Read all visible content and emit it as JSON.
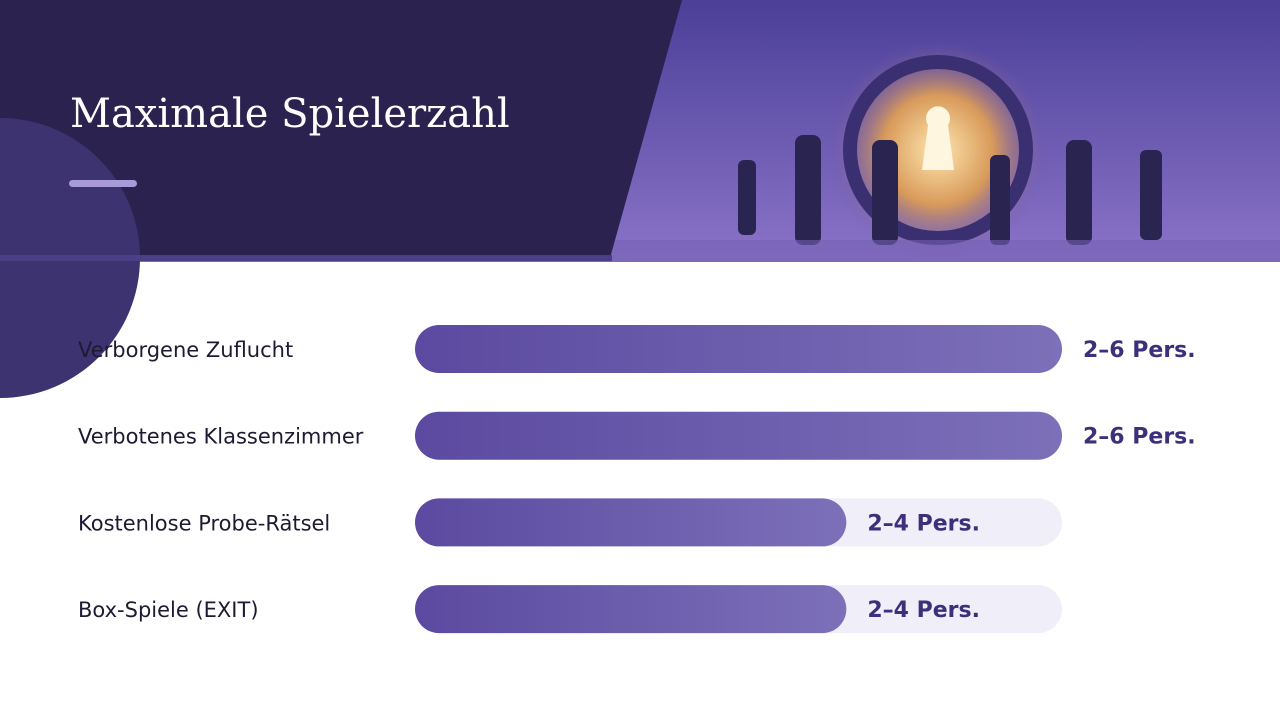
{
  "chart_data": {
    "type": "bar",
    "orientation": "horizontal",
    "title": "Maximale Spielerzahl",
    "categories": [
      "Verborgene Zuflucht",
      "Verbotenes Klassenzimmer",
      "Kostenlose Probe-Rätsel",
      "Box-Spiele (EXIT)"
    ],
    "values": [
      6,
      6,
      4,
      4
    ],
    "value_labels": [
      "2–6 Pers.",
      "2–6 Pers.",
      "2–4 Pers.",
      "2–4 Pers."
    ],
    "color": "#5b4aa0",
    "xlim": [
      0,
      6
    ]
  }
}
